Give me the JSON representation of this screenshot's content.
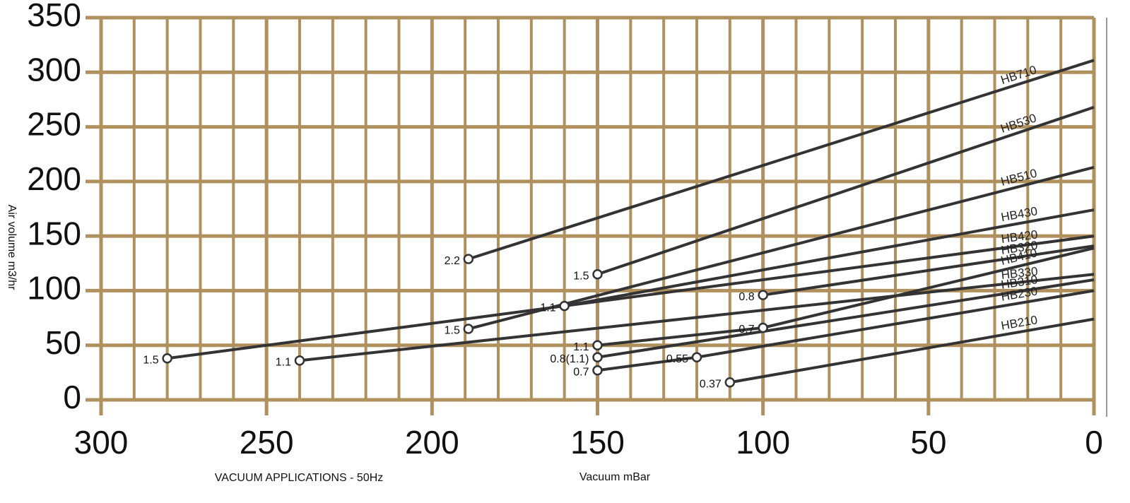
{
  "chart_data": {
    "type": "line",
    "y_label": "Air volume m3/hr",
    "x_label": "Vacuum mBar",
    "footer": "VACUUM APPLICATIONS - 50Hz",
    "xlim": [
      300,
      0
    ],
    "ylim": [
      0,
      350
    ],
    "xticks": [
      300,
      250,
      200,
      150,
      100,
      50,
      0
    ],
    "xminorticks": [
      290,
      280,
      270,
      260,
      240,
      230,
      220,
      210,
      190,
      180,
      170,
      160,
      140,
      130,
      120,
      110,
      90,
      80,
      70,
      60,
      40,
      30,
      20,
      10
    ],
    "yticks": [
      0,
      50,
      100,
      150,
      200,
      250,
      300,
      350
    ],
    "grid": true,
    "grid_color": "#b0915e",
    "line_color": "#333333",
    "series": [
      {
        "name": "HB710",
        "x": [
          189,
          0
        ],
        "values": [
          129,
          311
        ],
        "point_labels": [
          "2.2",
          null
        ]
      },
      {
        "name": "HB530",
        "x": [
          150,
          0
        ],
        "values": [
          115,
          268
        ],
        "point_labels": [
          "1.5",
          null
        ]
      },
      {
        "name": "HB510",
        "x": [
          189,
          0
        ],
        "values": [
          65,
          213
        ],
        "point_labels": [
          "1.5",
          null
        ]
      },
      {
        "name": "HB430",
        "x": [
          160,
          0
        ],
        "values": [
          86,
          174
        ],
        "point_labels": [
          "1.1",
          null
        ]
      },
      {
        "name": "HB420",
        "x": [
          280,
          0
        ],
        "values": [
          38,
          150
        ],
        "point_labels": [
          "1.5",
          null
        ]
      },
      {
        "name": "HB330",
        "x": [
          240,
          0
        ],
        "values": [
          36,
          115
        ],
        "point_labels": [
          "1.1",
          null
        ]
      },
      {
        "name": "HB320",
        "x": [
          100,
          0
        ],
        "values": [
          96,
          141
        ],
        "point_labels": [
          "0.8",
          null
        ]
      },
      {
        "name": "HB410",
        "x": [
          150,
          100,
          0
        ],
        "values": [
          50,
          66,
          139
        ],
        "point_labels": [
          "1.1",
          "0.7",
          null
        ]
      },
      {
        "name": "HB310",
        "x": [
          150,
          0
        ],
        "values": [
          39,
          110
        ],
        "point_labels": [
          "0.8(1.1)",
          null
        ]
      },
      {
        "name": "HB230",
        "x": [
          150,
          120,
          0
        ],
        "values": [
          27,
          39,
          100
        ],
        "point_labels": [
          "0.7",
          "0.55",
          null
        ]
      },
      {
        "name": "HB210",
        "x": [
          110,
          0
        ],
        "values": [
          16,
          74
        ],
        "point_labels": [
          "0.37",
          null
        ]
      }
    ]
  }
}
